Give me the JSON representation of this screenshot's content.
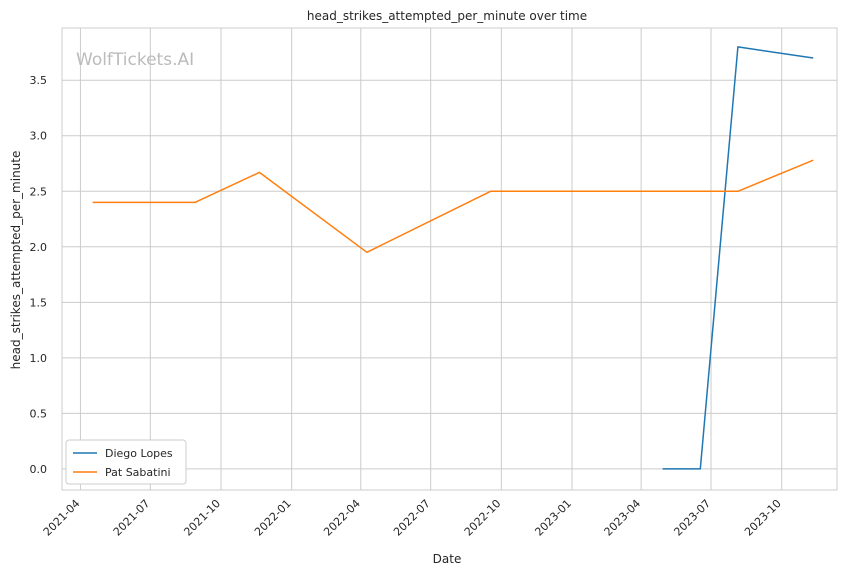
{
  "chart_data": {
    "type": "line",
    "title": "head_strikes_attempted_per_minute over time",
    "xlabel": "Date",
    "ylabel": "head_strikes_attempted_per_minute",
    "watermark": "WolfTickets.AI",
    "grid": true,
    "legend_position": "lower-left",
    "xlim": [
      "2021-03-08",
      "2023-12-12"
    ],
    "ylim": [
      -0.19,
      3.97
    ],
    "x_ticks": [
      "2021-04-01",
      "2021-07-01",
      "2021-10-01",
      "2022-01-01",
      "2022-04-01",
      "2022-07-01",
      "2022-10-01",
      "2023-01-01",
      "2023-04-01",
      "2023-07-01",
      "2023-10-01"
    ],
    "x_tick_labels": [
      "2021-04",
      "2021-07",
      "2021-10",
      "2022-01",
      "2022-04",
      "2022-07",
      "2022-10",
      "2023-01",
      "2023-04",
      "2023-07",
      "2023-10"
    ],
    "y_ticks": [
      0.0,
      0.5,
      1.0,
      1.5,
      2.0,
      2.5,
      3.0,
      3.5
    ],
    "y_tick_labels": [
      "0.0",
      "0.5",
      "1.0",
      "1.5",
      "2.0",
      "2.5",
      "3.0",
      "3.5"
    ],
    "series": [
      {
        "name": "Diego Lopes",
        "color": "#1f77b4",
        "points": [
          {
            "x": "2023-04-29",
            "y": 0.0
          },
          {
            "x": "2023-06-17",
            "y": 0.0
          },
          {
            "x": "2023-08-05",
            "y": 3.8
          },
          {
            "x": "2023-11-11",
            "y": 3.7
          }
        ]
      },
      {
        "name": "Pat Sabatini",
        "color": "#ff7f0e",
        "points": [
          {
            "x": "2021-04-17",
            "y": 2.4
          },
          {
            "x": "2021-08-28",
            "y": 2.4
          },
          {
            "x": "2021-11-20",
            "y": 2.67
          },
          {
            "x": "2022-04-09",
            "y": 1.95
          },
          {
            "x": "2022-09-17",
            "y": 2.5
          },
          {
            "x": "2023-04-29",
            "y": 2.5
          },
          {
            "x": "2023-08-05",
            "y": 2.5
          },
          {
            "x": "2023-11-11",
            "y": 2.78
          }
        ]
      }
    ]
  }
}
